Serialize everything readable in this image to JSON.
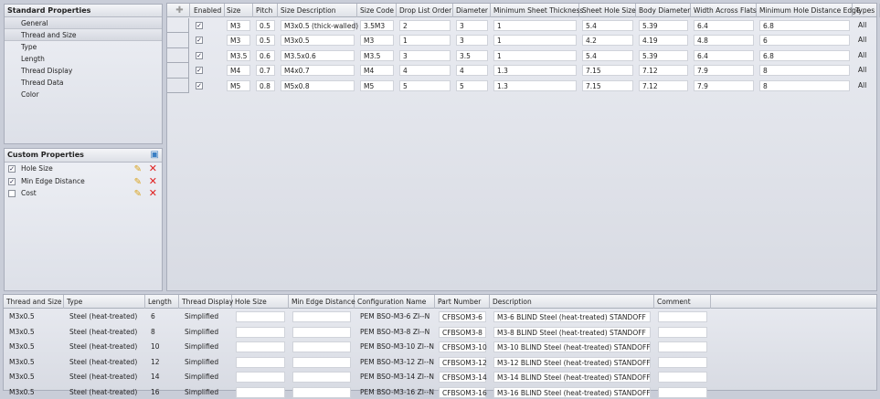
{
  "standard_properties": {
    "title": "Standard Properties",
    "items": [
      "General",
      "Thread and Size",
      "Type",
      "Length",
      "Thread Display",
      "Thread Data",
      "Color"
    ],
    "selected": "Thread and Size"
  },
  "custom_properties": {
    "title": "Custom Properties",
    "items": [
      {
        "label": "Hole Size",
        "checked": true
      },
      {
        "label": "Min Edge Distance",
        "checked": true
      },
      {
        "label": "Cost",
        "checked": false
      }
    ]
  },
  "thread_grid": {
    "columns": [
      "Enabled",
      "Size",
      "Pitch",
      "Size Description",
      "Size Code",
      "Drop List Order",
      "Diameter",
      "Minimum Sheet Thickness",
      "Sheet Hole Size",
      "Body Diameter",
      "Width Across Flats",
      "Minimum Hole Distance Edge",
      "Types"
    ],
    "rows": [
      {
        "enabled": true,
        "cells": [
          "M3",
          "0.5",
          "M3x0.5 (thick-walled)",
          "3.5M3",
          "2",
          "3",
          "1",
          "5.4",
          "5.39",
          "6.4",
          "6.8",
          "All"
        ]
      },
      {
        "enabled": true,
        "cells": [
          "M3",
          "0.5",
          "M3x0.5",
          "M3",
          "1",
          "3",
          "1",
          "4.2",
          "4.19",
          "4.8",
          "6",
          "All"
        ]
      },
      {
        "enabled": true,
        "cells": [
          "M3.5",
          "0.6",
          "M3.5x0.6",
          "M3.5",
          "3",
          "3.5",
          "1",
          "5.4",
          "5.39",
          "6.4",
          "6.8",
          "All"
        ]
      },
      {
        "enabled": true,
        "cells": [
          "M4",
          "0.7",
          "M4x0.7",
          "M4",
          "4",
          "4",
          "1.3",
          "7.15",
          "7.12",
          "7.9",
          "8",
          "All"
        ]
      },
      {
        "enabled": true,
        "cells": [
          "M5",
          "0.8",
          "M5x0.8",
          "M5",
          "5",
          "5",
          "1.3",
          "7.15",
          "7.12",
          "7.9",
          "8",
          "All"
        ]
      }
    ]
  },
  "config_grid": {
    "columns": [
      "Thread and Size",
      "Type",
      "Length",
      "Thread Display",
      "Hole Size",
      "Min Edge Distance",
      "Configuration Name",
      "Part Number",
      "Description",
      "Comment"
    ],
    "rows": [
      [
        "M3x0.5",
        "Steel (heat-treated)",
        "6",
        "Simplified",
        "",
        "",
        "PEM BSO-M3-6 ZI--N",
        "CFBSOM3-6",
        "M3-6 BLIND Steel (heat-treated) STANDOFF",
        ""
      ],
      [
        "M3x0.5",
        "Steel (heat-treated)",
        "8",
        "Simplified",
        "",
        "",
        "PEM BSO-M3-8 ZI--N",
        "CFBSOM3-8",
        "M3-8 BLIND Steel (heat-treated) STANDOFF",
        ""
      ],
      [
        "M3x0.5",
        "Steel (heat-treated)",
        "10",
        "Simplified",
        "",
        "",
        "PEM BSO-M3-10 ZI--N",
        "CFBSOM3-10",
        "M3-10 BLIND Steel (heat-treated) STANDOFF",
        ""
      ],
      [
        "M3x0.5",
        "Steel (heat-treated)",
        "12",
        "Simplified",
        "",
        "",
        "PEM BSO-M3-12 ZI--N",
        "CFBSOM3-12",
        "M3-12 BLIND Steel (heat-treated) STANDOFF",
        ""
      ],
      [
        "M3x0.5",
        "Steel (heat-treated)",
        "14",
        "Simplified",
        "",
        "",
        "PEM BSO-M3-14 ZI--N",
        "CFBSOM3-14",
        "M3-14 BLIND Steel (heat-treated) STANDOFF",
        ""
      ],
      [
        "M3x0.5",
        "Steel (heat-treated)",
        "16",
        "Simplified",
        "",
        "",
        "PEM BSO-M3-16 ZI--N",
        "CFBSOM3-16",
        "M3-16 BLIND Steel (heat-treated) STANDOFF",
        ""
      ]
    ]
  }
}
